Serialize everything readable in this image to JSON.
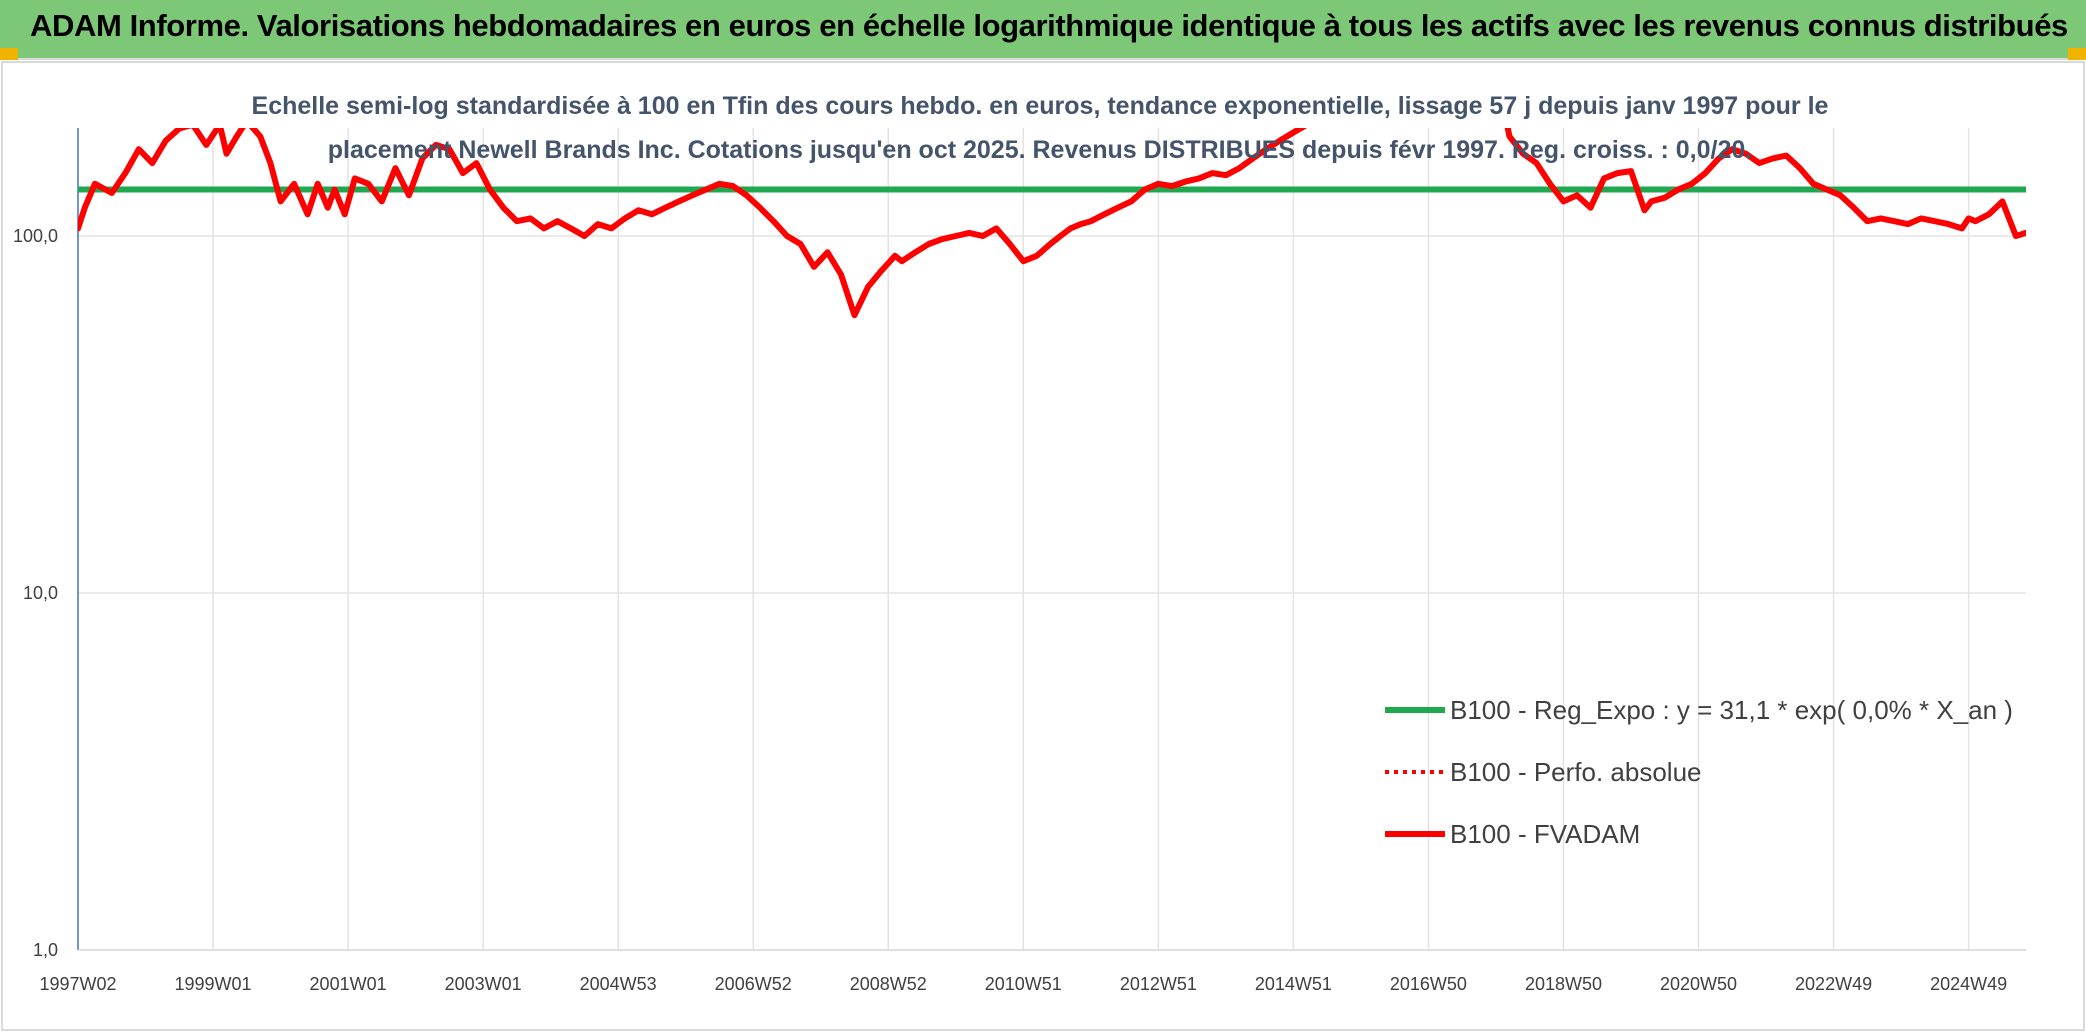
{
  "header": {
    "title": "ADAM Informe. Valorisations hebdomadaires en euros en échelle logarithmique identique à tous les actifs avec les revenus connus distribués",
    "background_color": "#7dc876",
    "corner_color": "#f0b400"
  },
  "chart_data": {
    "type": "line",
    "title_lines": [
      "Echelle semi-log standardisée à 100 en Tfin des cours hebdo. en euros, tendance exponentielle, lissage 57 j depuis janv 1997 pour le",
      "placement Newell Brands Inc. Cotations jusqu'en oct 2025. Revenus DISTRIBUES depuis févr 1997. Reg. croiss. : 0,0/20."
    ],
    "y_scale": "log",
    "ylim": [
      1,
      230
    ],
    "y_ticks": [
      {
        "value": 100,
        "label": "100,0"
      },
      {
        "value": 10,
        "label": "10,0"
      },
      {
        "value": 1,
        "label": "1,0"
      }
    ],
    "xlim": [
      1997.0,
      2025.85
    ],
    "x_ticks": [
      {
        "value": 1997.0,
        "label": "1997W02"
      },
      {
        "value": 1999.0,
        "label": "1999W01"
      },
      {
        "value": 2001.0,
        "label": "2001W01"
      },
      {
        "value": 2003.0,
        "label": "2003W01"
      },
      {
        "value": 2005.0,
        "label": "2004W53"
      },
      {
        "value": 2007.0,
        "label": "2006W52"
      },
      {
        "value": 2009.0,
        "label": "2008W52"
      },
      {
        "value": 2011.0,
        "label": "2010W51"
      },
      {
        "value": 2013.0,
        "label": "2012W51"
      },
      {
        "value": 2015.0,
        "label": "2014W51"
      },
      {
        "value": 2017.0,
        "label": "2016W50"
      },
      {
        "value": 2019.0,
        "label": "2018W50"
      },
      {
        "value": 2021.0,
        "label": "2020W50"
      },
      {
        "value": 2023.0,
        "label": "2022W49"
      },
      {
        "value": 2025.0,
        "label": "2024W49"
      }
    ],
    "grid": true,
    "legend_position": "lower-right",
    "series": [
      {
        "name": "B100 - Reg_Expo : y = 31,1 * exp( 0,0% *  X_an )",
        "color": "#1fa84f",
        "style": "solid",
        "x": [
          1997.0,
          2025.85
        ],
        "y": [
          135,
          135
        ]
      },
      {
        "name": "B100 - Perfo. absolue",
        "color": "#ff0000",
        "style": "dotted",
        "x": [],
        "y": []
      },
      {
        "name": "B100 - FVADAM",
        "color": "#ff0000",
        "style": "solid",
        "x": [
          1997.0,
          1997.1,
          1997.25,
          1997.5,
          1997.7,
          1997.9,
          1998.1,
          1998.3,
          1998.5,
          1998.7,
          1998.9,
          1999.1,
          1999.2,
          1999.35,
          1999.5,
          1999.7,
          1999.85,
          2000.0,
          2000.2,
          2000.4,
          2000.55,
          2000.7,
          2000.8,
          2000.95,
          2001.1,
          2001.3,
          2001.5,
          2001.7,
          2001.9,
          2002.1,
          2002.3,
          2002.5,
          2002.7,
          2002.9,
          2003.1,
          2003.3,
          2003.5,
          2003.7,
          2003.9,
          2004.1,
          2004.3,
          2004.5,
          2004.7,
          2004.9,
          2005.1,
          2005.3,
          2005.5,
          2005.7,
          2005.9,
          2006.1,
          2006.3,
          2006.5,
          2006.7,
          2006.9,
          2007.1,
          2007.3,
          2007.5,
          2007.7,
          2007.9,
          2008.1,
          2008.3,
          2008.5,
          2008.7,
          2008.9,
          2009.1,
          2009.2,
          2009.4,
          2009.6,
          2009.8,
          2010.0,
          2010.2,
          2010.4,
          2010.6,
          2010.8,
          2011.0,
          2011.2,
          2011.4,
          2011.55,
          2011.7,
          2011.85,
          2012.0,
          2012.2,
          2012.4,
          2012.6,
          2012.8,
          2013.0,
          2013.2,
          2013.4,
          2013.6,
          2013.8,
          2014.0,
          2014.2,
          2014.4,
          2014.6,
          2014.8,
          2015.0,
          2015.2,
          2015.35,
          2015.45
        ],
        "y": [
          105,
          120,
          140,
          132,
          150,
          175,
          160,
          185,
          200,
          205,
          180,
          205,
          170,
          190,
          210,
          190,
          160,
          125,
          140,
          115,
          140,
          120,
          135,
          115,
          145,
          140,
          125,
          155,
          130,
          165,
          180,
          175,
          150,
          160,
          135,
          120,
          110,
          112,
          105,
          110,
          105,
          100,
          108,
          105,
          112,
          118,
          115,
          120,
          125,
          130,
          135,
          140,
          138,
          130,
          120,
          110,
          100,
          95,
          82,
          90,
          78,
          60,
          72,
          80,
          88,
          85,
          90,
          95,
          98,
          100,
          102,
          100,
          105,
          95,
          85,
          88,
          95,
          100,
          105,
          108,
          110,
          115,
          120,
          125,
          135,
          140,
          138,
          142,
          145,
          150,
          148,
          155,
          165,
          175,
          185,
          195,
          205,
          220,
          235
        ]
      },
      {
        "name": "B100 - FVADAM",
        "color": "#ff0000",
        "style": "solid",
        "segment": 2,
        "x": [
          2018.1,
          2018.2,
          2018.4,
          2018.6,
          2018.8,
          2019.0,
          2019.2,
          2019.4,
          2019.6,
          2019.8,
          2020.0,
          2020.2,
          2020.3,
          2020.5,
          2020.7,
          2020.9,
          2021.1,
          2021.3,
          2021.5,
          2021.7,
          2021.9,
          2022.1,
          2022.3,
          2022.5,
          2022.7,
          2022.9,
          2023.1,
          2023.3,
          2023.5,
          2023.7,
          2023.9,
          2024.1,
          2024.3,
          2024.5,
          2024.7,
          2024.9,
          2025.0,
          2025.1,
          2025.3,
          2025.5,
          2025.7,
          2025.85
        ],
        "y": [
          235,
          190,
          170,
          160,
          140,
          125,
          130,
          120,
          145,
          150,
          152,
          118,
          125,
          128,
          135,
          140,
          150,
          165,
          175,
          170,
          160,
          165,
          168,
          155,
          140,
          135,
          130,
          120,
          110,
          112,
          110,
          108,
          112,
          110,
          108,
          105,
          112,
          110,
          115,
          125,
          100,
          102
        ]
      }
    ]
  }
}
